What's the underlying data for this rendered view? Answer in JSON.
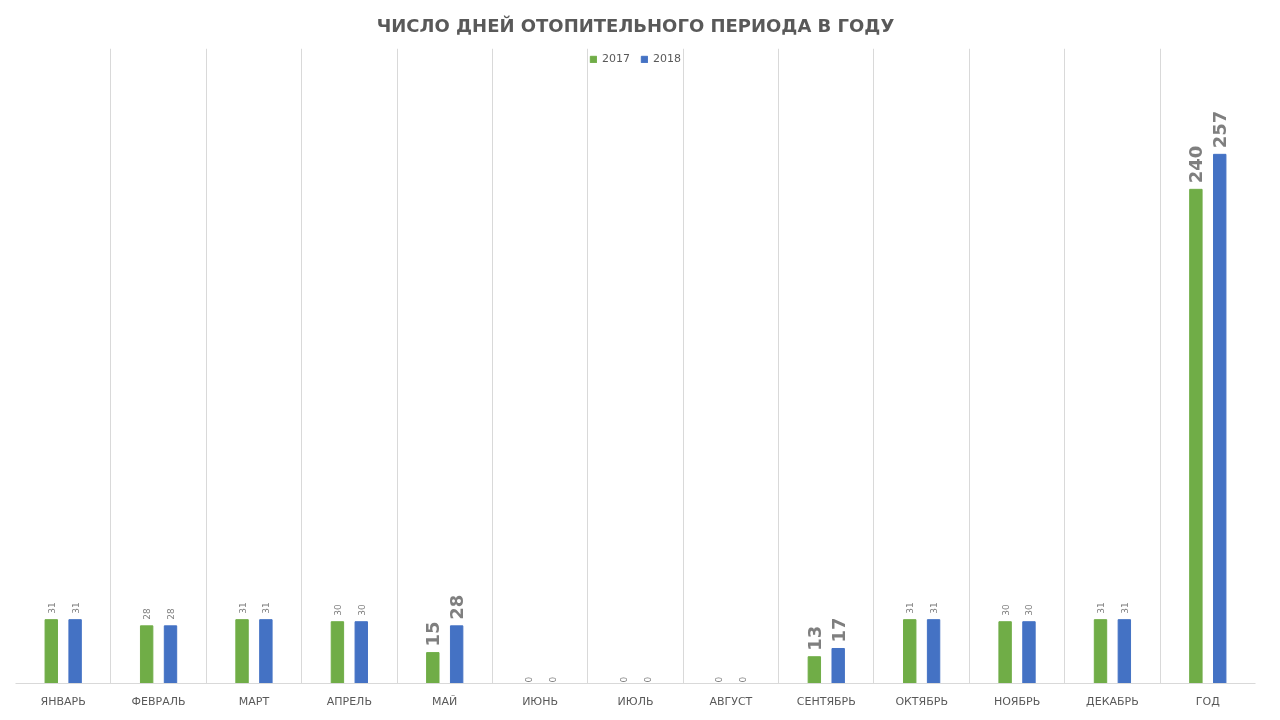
{
  "chart_data": {
    "type": "bar",
    "title": "ЧИСЛО ДНЕЙ ОТОПИТЕЛЬНОГО ПЕРИОДА В ГОДУ",
    "categories": [
      "ЯНВАРЬ",
      "ФЕВРАЛЬ",
      "МАРТ",
      "АПРЕЛЬ",
      "МАЙ",
      "ИЮНЬ",
      "ИЮЛЬ",
      "АВГУСТ",
      "СЕНТЯБРЬ",
      "ОКТЯБРЬ",
      "НОЯБРЬ",
      "ДЕКАБРЬ",
      "ГОД"
    ],
    "series": [
      {
        "name": "2017",
        "color": "#70ad47",
        "values": [
          31,
          28,
          31,
          30,
          15,
          0,
          0,
          0,
          13,
          31,
          30,
          31,
          240
        ]
      },
      {
        "name": "2018",
        "color": "#4472c4",
        "values": [
          31,
          28,
          31,
          30,
          28,
          0,
          0,
          0,
          17,
          31,
          30,
          31,
          257
        ]
      }
    ],
    "data_labels": true,
    "legend": "top",
    "grid": "x",
    "tick_labels": "x"
  }
}
